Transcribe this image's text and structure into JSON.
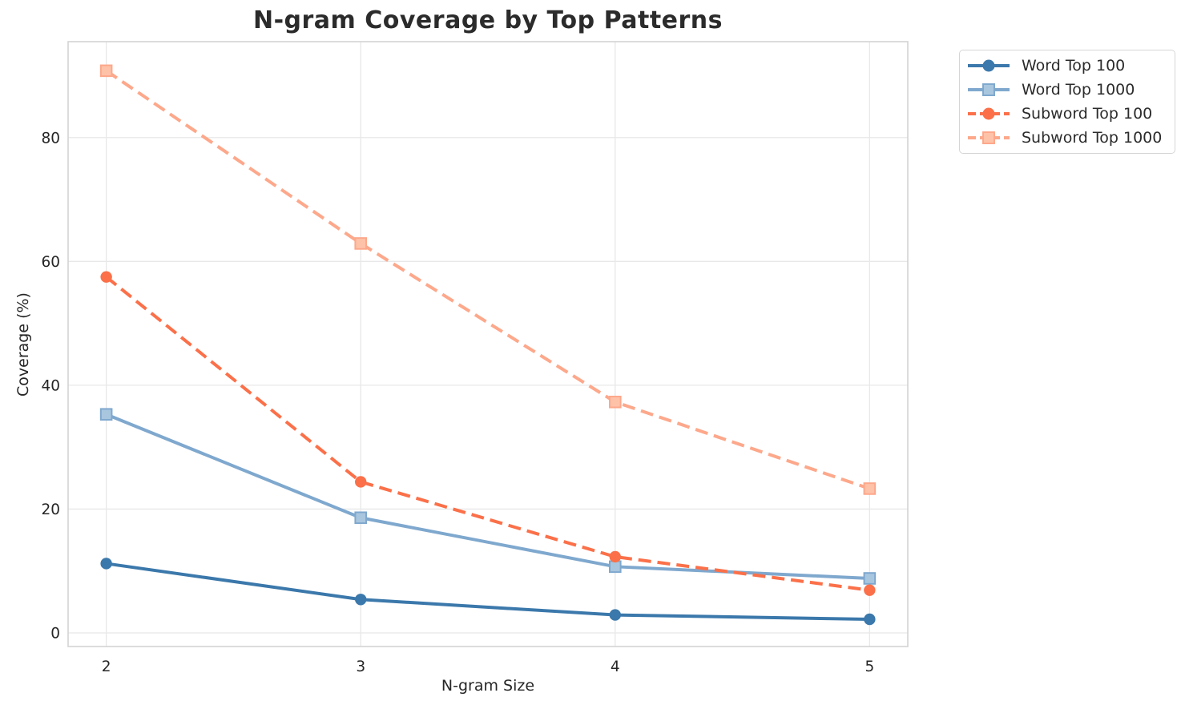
{
  "figure": {
    "background": "#ffffff"
  },
  "chart_data": {
    "type": "line",
    "title": "N-gram Coverage by Top Patterns",
    "xlabel": "N-gram Size",
    "ylabel": "Coverage (%)",
    "x": [
      2,
      3,
      4,
      5
    ],
    "xtick_labels": [
      "2",
      "3",
      "4",
      "5"
    ],
    "yticks": [
      0,
      20,
      40,
      60,
      80
    ],
    "ytick_labels": [
      "0",
      "20",
      "40",
      "60",
      "80"
    ],
    "xlim": [
      1.85,
      5.15
    ],
    "ylim": [
      -2.2,
      95.5
    ],
    "grid": true,
    "legend_position": "outside-upper-right",
    "series": [
      {
        "name": "Word Top 100",
        "values": [
          11.2,
          5.4,
          2.9,
          2.2
        ],
        "color": "#3b78ab",
        "marker_fill": "#3b78ab",
        "line_style": "solid",
        "marker": "circle"
      },
      {
        "name": "Word Top 1000",
        "values": [
          35.3,
          18.6,
          10.7,
          8.8
        ],
        "color": "#7fa8ce",
        "marker_fill": "#a9c6df",
        "line_style": "solid",
        "marker": "square"
      },
      {
        "name": "Subword Top 100",
        "values": [
          57.5,
          24.4,
          12.3,
          6.9
        ],
        "color": "#fb7049",
        "marker_fill": "#fb7049",
        "line_style": "dashed",
        "marker": "circle"
      },
      {
        "name": "Subword Top 1000",
        "values": [
          90.8,
          62.9,
          37.3,
          23.3
        ],
        "color": "#fda88b",
        "marker_fill": "#fec2a8",
        "line_style": "dashed",
        "marker": "square"
      }
    ],
    "colors": {
      "grid": "#e8e8e8",
      "spine": "#d3d3d3",
      "text": "#262626"
    }
  }
}
